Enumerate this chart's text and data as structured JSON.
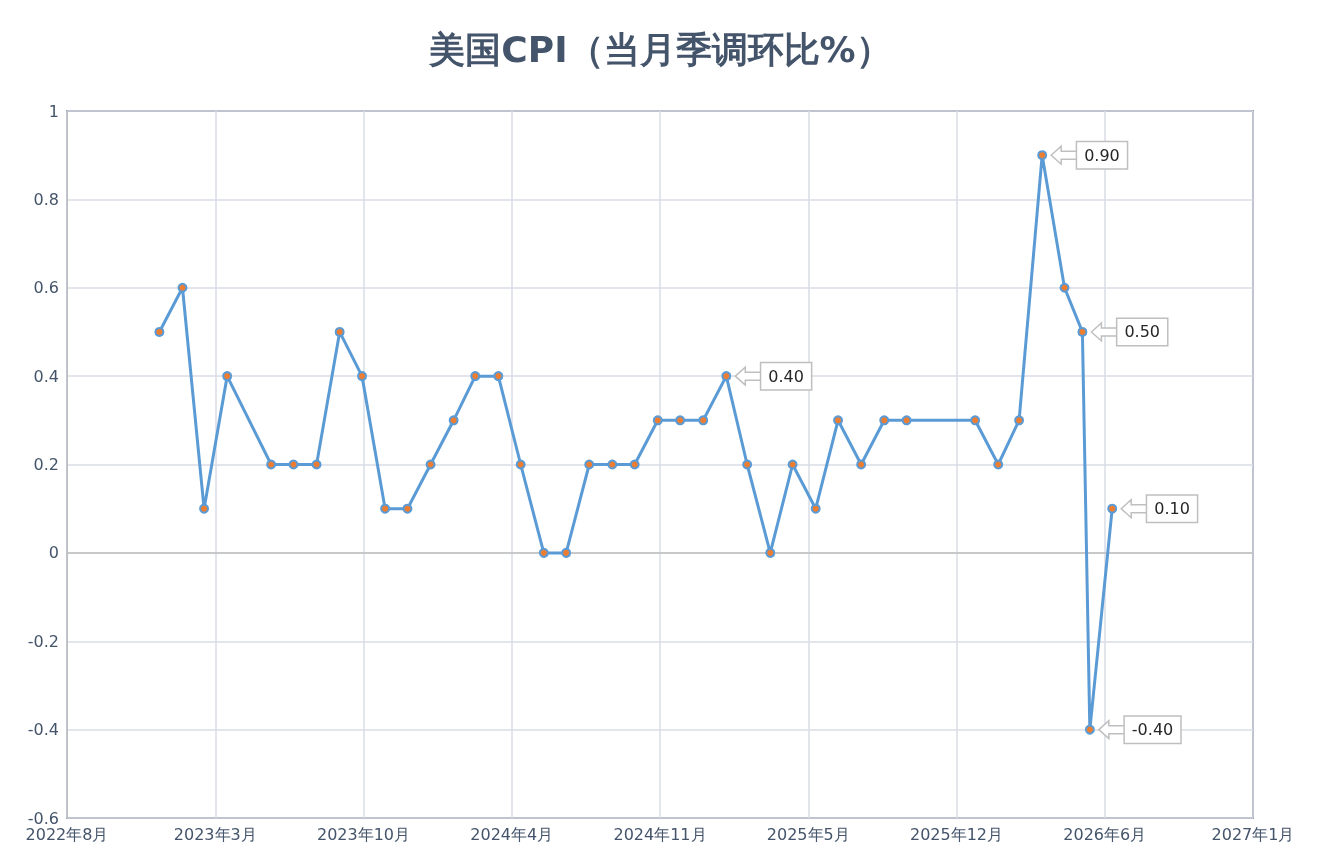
{
  "chart_data": {
    "type": "line",
    "title": "美国CPI（当月季调环比%）",
    "x": [
      "2023-01-02",
      "2023-02-02",
      "2023-03-03",
      "2023-04-03",
      "2023-06-01",
      "2023-07-01",
      "2023-08-01",
      "2023-09-01",
      "2023-10-01",
      "2023-11-01",
      "2023-12-01",
      "2024-01-01",
      "2024-02-01",
      "2024-03-01",
      "2024-04-01",
      "2024-05-01",
      "2024-06-01",
      "2024-07-01",
      "2024-08-01",
      "2024-09-01",
      "2024-10-01",
      "2024-11-01",
      "2024-12-01",
      "2025-01-01",
      "2025-02-01",
      "2025-03-01",
      "2025-04-01",
      "2025-05-01",
      "2025-06-01",
      "2025-07-01",
      "2025-08-01",
      "2025-09-01",
      "2025-10-01",
      "2026-01-01",
      "2026-02-01",
      "2026-03-01",
      "2026-04-01",
      "2026-05-01",
      "2026-05-25",
      "2026-06-04",
      "2026-07-04"
    ],
    "series": [
      {
        "color": "#5b9bd5",
        "values": [
          0.5,
          0.6,
          0.1,
          0.4,
          0.2,
          0.2,
          0.2,
          0.5,
          0.4,
          0.1,
          0.1,
          0.2,
          0.3,
          0.4,
          0.4,
          0.2,
          0,
          0,
          0.2,
          0.2,
          0.2,
          0.3,
          0.3,
          0.3,
          0.4,
          0.2,
          0,
          0.2,
          0.1,
          0.3,
          0.2,
          0.3,
          0.3,
          0.3,
          0.2,
          0.3,
          0.9,
          0.6,
          0.5,
          -0.4,
          0.1
        ]
      }
    ],
    "marker": "circle",
    "grid": true,
    "xlim": [
      "2022-08-31",
      "2027-01-09"
    ],
    "xticks": [
      {
        "value": "2022-08-31",
        "label": "2022年8月"
      },
      {
        "value": "2023-03-18",
        "label": "2023年3月"
      },
      {
        "value": "2023-10-03",
        "label": "2023年10月"
      },
      {
        "value": "2024-04-19",
        "label": "2024年4月"
      },
      {
        "value": "2024-11-04",
        "label": "2024年11月"
      },
      {
        "value": "2025-05-22",
        "label": "2025年5月"
      },
      {
        "value": "2025-12-07",
        "label": "2025年12月"
      },
      {
        "value": "2026-06-24",
        "label": "2026年6月"
      },
      {
        "value": "2027-01-09",
        "label": "2027年1月"
      }
    ],
    "ylim": [
      -0.6,
      1
    ],
    "yticks": [
      -0.6,
      -0.4,
      -0.2,
      0,
      0.2,
      0.4,
      0.6,
      0.8,
      1
    ],
    "annotations": [
      {
        "text": "0.40",
        "x": "2025-02-01",
        "y": 0.4
      },
      {
        "text": "0.90",
        "x": "2026-04-01",
        "y": 0.9
      },
      {
        "text": "0.50",
        "x": "2026-05-25",
        "y": 0.5
      },
      {
        "text": "-0.40",
        "x": "2026-06-04",
        "y": -0.4
      },
      {
        "text": "0.10",
        "x": "2026-07-04",
        "y": 0.1
      }
    ]
  }
}
